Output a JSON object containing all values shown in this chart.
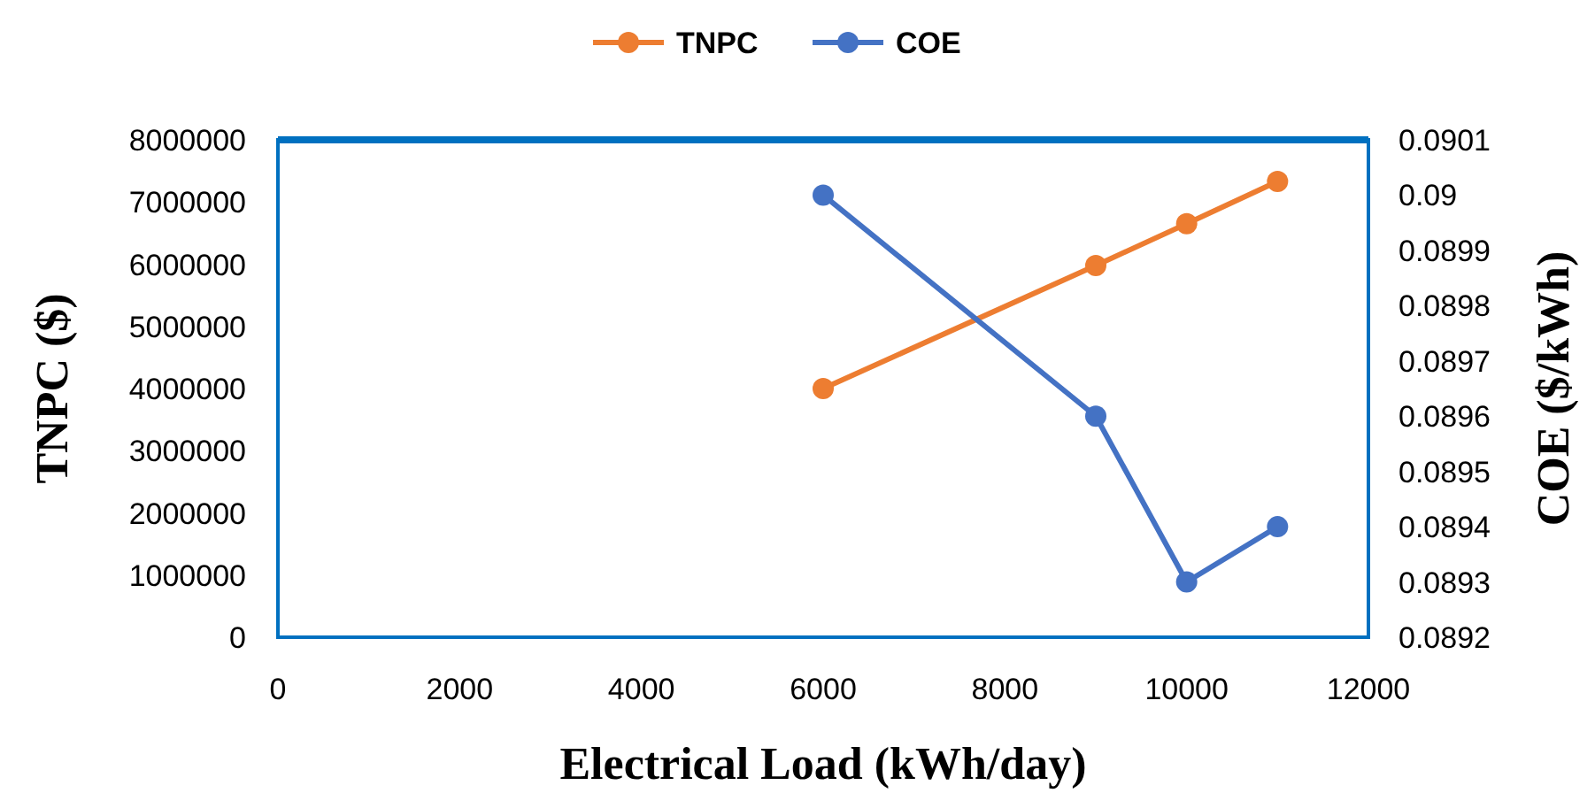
{
  "chart_data": {
    "type": "line",
    "xlabel": "Electrical Load (kWh/day)",
    "ylabel": "TNPC ($)",
    "y2label": "COE ($/kWh)",
    "xlim": [
      0,
      12000
    ],
    "xticks": [
      0,
      2000,
      4000,
      6000,
      8000,
      10000,
      12000
    ],
    "ylim": [
      0,
      8000000
    ],
    "yticks": [
      0,
      1000000,
      2000000,
      3000000,
      4000000,
      5000000,
      6000000,
      7000000,
      8000000
    ],
    "y2lim": [
      0.0892,
      0.0901
    ],
    "y2ticks": [
      0.0892,
      0.0893,
      0.0894,
      0.0895,
      0.0896,
      0.0897,
      0.0898,
      0.0899,
      0.09,
      0.0901
    ],
    "x": [
      6000,
      9000,
      10000,
      11000
    ],
    "series": [
      {
        "name": "TNPC",
        "color": "#ed7d31",
        "values": [
          4000000,
          5980000,
          6650000,
          7330000
        ]
      },
      {
        "name": "COE",
        "color": "#4472c4",
        "axis": "y2",
        "values": [
          0.09,
          0.0896,
          0.0893,
          0.0894
        ]
      }
    ],
    "marker": "circle",
    "line_style": "solid",
    "legend": "top",
    "grid": false
  }
}
